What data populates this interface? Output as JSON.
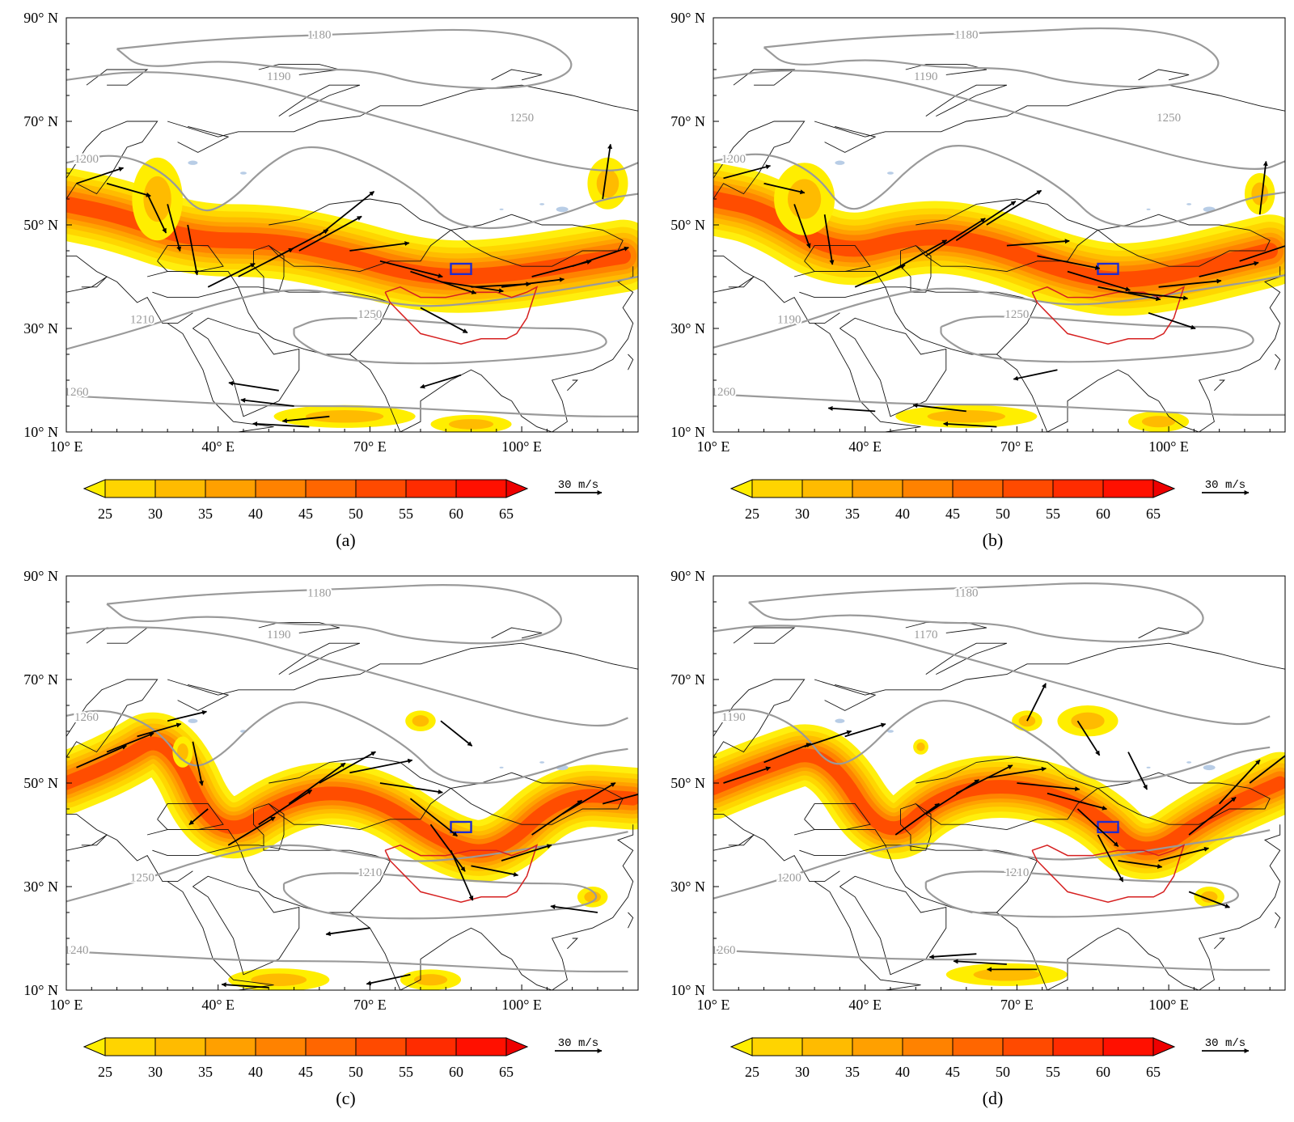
{
  "figure": {
    "shading_colors": [
      "#ffee00",
      "#ffd400",
      "#ffbb00",
      "#ffa000",
      "#ff8200",
      "#ff6600",
      "#ff4a00",
      "#ff2c00",
      "#ff1000",
      "#ee0000"
    ],
    "land_outline_color": "#111111",
    "contour_color": "#9a9a9a",
    "contour_label_color": "#9a9a9a",
    "plateau_outline_color": "#d62020",
    "study_box_color": "#1f2ccf",
    "lake_color": "#b8cde6"
  },
  "axes": {
    "y_ticks": [
      "90° N",
      "70° N",
      "50° N",
      "30° N",
      "10° N"
    ],
    "x_ticks": [
      "10° E",
      "40° E",
      "70° E",
      "100° E"
    ]
  },
  "colorbar": {
    "ticks": [
      "25",
      "30",
      "35",
      "40",
      "45",
      "50",
      "55",
      "60",
      "65"
    ]
  },
  "vector_key": {
    "label": "30 m/s",
    "magnitude_ms": 30
  },
  "panels": [
    {
      "label": "(a)",
      "contour_labels": [
        "1180",
        "1190",
        "1200",
        "1210",
        "1250",
        "1260",
        "1250"
      ],
      "jet_center": [
        [
          10,
          54
        ],
        [
          20,
          52
        ],
        [
          35,
          47
        ],
        [
          50,
          47
        ],
        [
          62,
          45
        ],
        [
          80,
          40
        ],
        [
          95,
          40
        ],
        [
          120,
          44
        ]
      ],
      "jet_width_deg": 7,
      "vectors": [
        {
          "lon": 12,
          "lat": 58,
          "u": 30,
          "v": 10
        },
        {
          "lon": 18,
          "lat": 58,
          "u": 28,
          "v": -8
        },
        {
          "lon": 26,
          "lat": 56,
          "u": 12,
          "v": -25
        },
        {
          "lon": 30,
          "lat": 54,
          "u": 8,
          "v": -30
        },
        {
          "lon": 34,
          "lat": 50,
          "u": 6,
          "v": -32
        },
        {
          "lon": 38,
          "lat": 38,
          "u": 30,
          "v": 15
        },
        {
          "lon": 44,
          "lat": 40,
          "u": 35,
          "v": 18
        },
        {
          "lon": 50,
          "lat": 43,
          "u": 38,
          "v": 20
        },
        {
          "lon": 56,
          "lat": 45,
          "u": 40,
          "v": 22
        },
        {
          "lon": 60,
          "lat": 48,
          "u": 35,
          "v": 28
        },
        {
          "lon": 66,
          "lat": 45,
          "u": 38,
          "v": 5
        },
        {
          "lon": 72,
          "lat": 43,
          "u": 40,
          "v": -10
        },
        {
          "lon": 78,
          "lat": 41,
          "u": 42,
          "v": -14
        },
        {
          "lon": 84,
          "lat": 39,
          "u": 40,
          "v": -6
        },
        {
          "lon": 90,
          "lat": 38,
          "u": 38,
          "v": 2
        },
        {
          "lon": 96,
          "lat": 38,
          "u": 40,
          "v": 5
        },
        {
          "lon": 102,
          "lat": 40,
          "u": 38,
          "v": 10
        },
        {
          "lon": 110,
          "lat": 42,
          "u": 36,
          "v": 12
        },
        {
          "lon": 116,
          "lat": 55,
          "u": 5,
          "v": 35
        },
        {
          "lon": 80,
          "lat": 34,
          "u": 30,
          "v": -16
        },
        {
          "lon": 88,
          "lat": 21,
          "u": -26,
          "v": -8
        },
        {
          "lon": 52,
          "lat": 18,
          "u": -32,
          "v": 5
        },
        {
          "lon": 55,
          "lat": 15,
          "u": -34,
          "v": 4
        },
        {
          "lon": 62,
          "lat": 13,
          "u": -30,
          "v": -3
        },
        {
          "lon": 58,
          "lat": 11,
          "u": -36,
          "v": 2
        }
      ],
      "extra_shading": [
        {
          "lon": 117,
          "lat": 58,
          "rx": 4,
          "ry": 5
        },
        {
          "lon": 65,
          "lat": 13,
          "rx": 14,
          "ry": 2.2
        },
        {
          "lon": 90,
          "lat": 11.5,
          "rx": 8,
          "ry": 1.8
        },
        {
          "lon": 28,
          "lat": 55,
          "rx": 5,
          "ry": 8
        }
      ]
    },
    {
      "label": "(b)",
      "contour_labels": [
        "1180",
        "1190",
        "1200",
        "1190",
        "1250",
        "1260",
        "1250"
      ],
      "jet_center": [
        [
          10,
          55
        ],
        [
          20,
          53
        ],
        [
          35,
          44
        ],
        [
          50,
          48
        ],
        [
          63,
          47
        ],
        [
          82,
          40
        ],
        [
          95,
          39
        ],
        [
          120,
          45
        ]
      ],
      "jet_width_deg": 7,
      "vectors": [
        {
          "lon": 12,
          "lat": 59,
          "u": 30,
          "v": 8
        },
        {
          "lon": 20,
          "lat": 58,
          "u": 26,
          "v": -6
        },
        {
          "lon": 26,
          "lat": 54,
          "u": 10,
          "v": -28
        },
        {
          "lon": 32,
          "lat": 52,
          "u": 5,
          "v": -32
        },
        {
          "lon": 38,
          "lat": 38,
          "u": 32,
          "v": 14
        },
        {
          "lon": 45,
          "lat": 41,
          "u": 36,
          "v": 20
        },
        {
          "lon": 52,
          "lat": 44,
          "u": 38,
          "v": 24
        },
        {
          "lon": 58,
          "lat": 47,
          "u": 38,
          "v": 25
        },
        {
          "lon": 64,
          "lat": 50,
          "u": 35,
          "v": 22
        },
        {
          "lon": 68,
          "lat": 46,
          "u": 40,
          "v": 3
        },
        {
          "lon": 74,
          "lat": 44,
          "u": 40,
          "v": -8
        },
        {
          "lon": 80,
          "lat": 41,
          "u": 40,
          "v": -12
        },
        {
          "lon": 86,
          "lat": 38,
          "u": 40,
          "v": -8
        },
        {
          "lon": 92,
          "lat": 37,
          "u": 38,
          "v": -4
        },
        {
          "lon": 98,
          "lat": 38,
          "u": 40,
          "v": 4
        },
        {
          "lon": 106,
          "lat": 40,
          "u": 38,
          "v": 9
        },
        {
          "lon": 114,
          "lat": 43,
          "u": 36,
          "v": 12
        },
        {
          "lon": 118,
          "lat": 52,
          "u": 4,
          "v": 34
        },
        {
          "lon": 96,
          "lat": 33,
          "u": 30,
          "v": -10
        },
        {
          "lon": 78,
          "lat": 22,
          "u": -28,
          "v": -6
        },
        {
          "lon": 60,
          "lat": 14,
          "u": -34,
          "v": 4
        },
        {
          "lon": 42,
          "lat": 14,
          "u": -30,
          "v": 2
        },
        {
          "lon": 66,
          "lat": 11,
          "u": -34,
          "v": 2
        }
      ],
      "extra_shading": [
        {
          "lon": 118,
          "lat": 56,
          "rx": 3,
          "ry": 4
        },
        {
          "lon": 60,
          "lat": 13,
          "rx": 14,
          "ry": 2.2
        },
        {
          "lon": 98,
          "lat": 12,
          "rx": 6,
          "ry": 2
        },
        {
          "lon": 28,
          "lat": 55,
          "rx": 6,
          "ry": 7
        }
      ]
    },
    {
      "label": "(c)",
      "contour_labels": [
        "1180",
        "1190",
        "1260",
        "1250",
        "1210",
        "1240"
      ],
      "jet_center": [
        [
          10,
          50
        ],
        [
          20,
          54
        ],
        [
          30,
          60
        ],
        [
          40,
          38
        ],
        [
          55,
          48
        ],
        [
          70,
          48
        ],
        [
          85,
          38
        ],
        [
          95,
          36
        ],
        [
          108,
          48
        ],
        [
          122,
          47
        ]
      ],
      "jet_width_deg": 6,
      "vectors": [
        {
          "lon": 12,
          "lat": 53,
          "u": 32,
          "v": 14
        },
        {
          "lon": 18,
          "lat": 56,
          "u": 30,
          "v": 12
        },
        {
          "lon": 24,
          "lat": 59,
          "u": 28,
          "v": 8
        },
        {
          "lon": 30,
          "lat": 62,
          "u": 25,
          "v": 6
        },
        {
          "lon": 35,
          "lat": 58,
          "u": 6,
          "v": -28
        },
        {
          "lon": 38,
          "lat": 45,
          "u": -12,
          "v": -10
        },
        {
          "lon": 42,
          "lat": 38,
          "u": 30,
          "v": 18
        },
        {
          "lon": 48,
          "lat": 42,
          "u": 34,
          "v": 22
        },
        {
          "lon": 54,
          "lat": 46,
          "u": 36,
          "v": 26
        },
        {
          "lon": 60,
          "lat": 50,
          "u": 36,
          "v": 20
        },
        {
          "lon": 66,
          "lat": 52,
          "u": 40,
          "v": 8
        },
        {
          "lon": 72,
          "lat": 50,
          "u": 40,
          "v": -6
        },
        {
          "lon": 78,
          "lat": 47,
          "u": 30,
          "v": -24
        },
        {
          "lon": 82,
          "lat": 42,
          "u": 22,
          "v": -30
        },
        {
          "lon": 86,
          "lat": 37,
          "u": 14,
          "v": -32
        },
        {
          "lon": 90,
          "lat": 34,
          "u": 30,
          "v": -6
        },
        {
          "lon": 96,
          "lat": 35,
          "u": 32,
          "v": 10
        },
        {
          "lon": 102,
          "lat": 40,
          "u": 32,
          "v": 22
        },
        {
          "lon": 108,
          "lat": 44,
          "u": 34,
          "v": 20
        },
        {
          "lon": 116,
          "lat": 46,
          "u": 30,
          "v": 8
        },
        {
          "lon": 84,
          "lat": 62,
          "u": 20,
          "v": -16
        },
        {
          "lon": 115,
          "lat": 25,
          "u": -30,
          "v": 4
        },
        {
          "lon": 70,
          "lat": 22,
          "u": -28,
          "v": -4
        },
        {
          "lon": 78,
          "lat": 13,
          "u": -28,
          "v": -6
        },
        {
          "lon": 50,
          "lat": 10.5,
          "u": -30,
          "v": 2
        }
      ],
      "extra_shading": [
        {
          "lon": 80,
          "lat": 62,
          "rx": 3,
          "ry": 2
        },
        {
          "lon": 114,
          "lat": 28,
          "rx": 3,
          "ry": 2
        },
        {
          "lon": 52,
          "lat": 12,
          "rx": 10,
          "ry": 2.2
        },
        {
          "lon": 82,
          "lat": 12,
          "rx": 6,
          "ry": 2
        },
        {
          "lon": 33,
          "lat": 56,
          "rx": 2,
          "ry": 3
        }
      ]
    },
    {
      "label": "(d)",
      "contour_labels": [
        "1180",
        "1170",
        "1190",
        "1200",
        "1210",
        "1260"
      ],
      "jet_center": [
        [
          10,
          49
        ],
        [
          20,
          53
        ],
        [
          32,
          57
        ],
        [
          44,
          38
        ],
        [
          55,
          48
        ],
        [
          70,
          50
        ],
        [
          85,
          45
        ],
        [
          95,
          35
        ],
        [
          108,
          44
        ],
        [
          122,
          50
        ]
      ],
      "jet_width_deg": 6,
      "vectors": [
        {
          "lon": 12,
          "lat": 50,
          "u": 30,
          "v": 10
        },
        {
          "lon": 20,
          "lat": 54,
          "u": 30,
          "v": 12
        },
        {
          "lon": 28,
          "lat": 57,
          "u": 30,
          "v": 10
        },
        {
          "lon": 36,
          "lat": 59,
          "u": 26,
          "v": 8
        },
        {
          "lon": 46,
          "lat": 40,
          "u": 28,
          "v": 20
        },
        {
          "lon": 52,
          "lat": 44,
          "u": 34,
          "v": 22
        },
        {
          "lon": 58,
          "lat": 48,
          "u": 36,
          "v": 18
        },
        {
          "lon": 64,
          "lat": 51,
          "u": 38,
          "v": 6
        },
        {
          "lon": 70,
          "lat": 50,
          "u": 40,
          "v": -4
        },
        {
          "lon": 76,
          "lat": 48,
          "u": 38,
          "v": -10
        },
        {
          "lon": 82,
          "lat": 45,
          "u": 26,
          "v": -24
        },
        {
          "lon": 86,
          "lat": 40,
          "u": 16,
          "v": -30
        },
        {
          "lon": 90,
          "lat": 35,
          "u": 28,
          "v": -4
        },
        {
          "lon": 98,
          "lat": 35,
          "u": 32,
          "v": 8
        },
        {
          "lon": 104,
          "lat": 40,
          "u": 30,
          "v": 24
        },
        {
          "lon": 110,
          "lat": 46,
          "u": 26,
          "v": 28
        },
        {
          "lon": 116,
          "lat": 50,
          "u": 26,
          "v": 20
        },
        {
          "lon": 72,
          "lat": 62,
          "u": 12,
          "v": 24
        },
        {
          "lon": 82,
          "lat": 62,
          "u": 14,
          "v": -22
        },
        {
          "lon": 92,
          "lat": 56,
          "u": 12,
          "v": -24
        },
        {
          "lon": 104,
          "lat": 29,
          "u": 26,
          "v": -10
        },
        {
          "lon": 62,
          "lat": 17,
          "u": -30,
          "v": -2
        },
        {
          "lon": 68,
          "lat": 15,
          "u": -34,
          "v": 2
        },
        {
          "lon": 74,
          "lat": 14,
          "u": -32,
          "v": 0
        }
      ],
      "extra_shading": [
        {
          "lon": 84,
          "lat": 62,
          "rx": 6,
          "ry": 3
        },
        {
          "lon": 72,
          "lat": 62,
          "rx": 3,
          "ry": 2
        },
        {
          "lon": 68,
          "lat": 13,
          "rx": 12,
          "ry": 2.2
        },
        {
          "lon": 108,
          "lat": 28,
          "rx": 3,
          "ry": 2
        },
        {
          "lon": 51,
          "lat": 57,
          "rx": 1.5,
          "ry": 1.5
        }
      ]
    }
  ]
}
